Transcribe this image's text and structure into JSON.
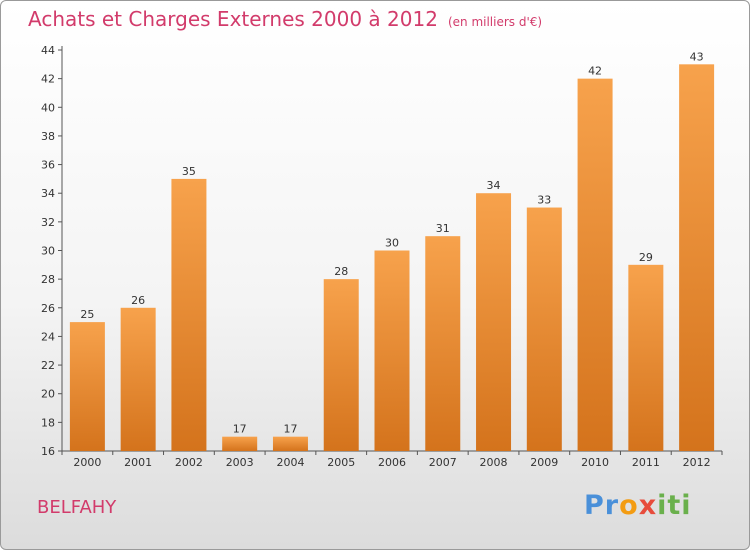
{
  "header": {
    "title": "Achats et Charges Externes 2000 à 2012",
    "unit": "(en milliers d'€)"
  },
  "footer": {
    "city": "BELFAHY",
    "logo": {
      "letters": [
        "P",
        "r",
        "o",
        "x",
        "i",
        "t",
        "i"
      ],
      "colors": [
        "#4a90d9",
        "#4a90d9",
        "#f39c12",
        "#e74c3c",
        "#6ab04c",
        "#6ab04c",
        "#6ab04c"
      ]
    }
  },
  "colors": {
    "bar_light": "#f7a24c",
    "bar_dark": "#d4731c",
    "text_accent": "#d23b6b"
  },
  "chart_data": {
    "type": "bar",
    "categories": [
      "2000",
      "2001",
      "2002",
      "2003",
      "2004",
      "2005",
      "2006",
      "2007",
      "2008",
      "2009",
      "2010",
      "2011",
      "2012"
    ],
    "values": [
      25,
      26,
      35,
      17,
      17,
      28,
      30,
      31,
      34,
      33,
      42,
      29,
      43
    ],
    "title": "Achats et Charges Externes 2000 à 2012",
    "xlabel": "",
    "ylabel": "",
    "ylim": [
      16,
      44
    ],
    "yticks": [
      16,
      18,
      20,
      22,
      24,
      26,
      28,
      30,
      32,
      34,
      36,
      38,
      40,
      42,
      44
    ],
    "grid": false,
    "data_labels": true
  }
}
